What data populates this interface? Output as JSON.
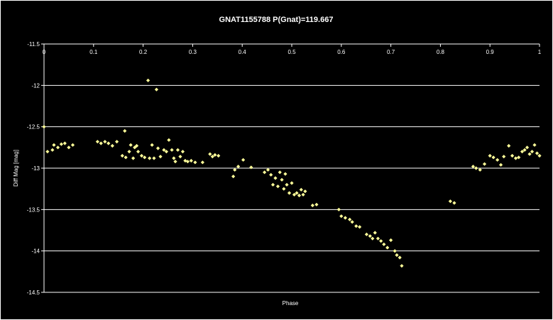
{
  "chart_data": {
    "type": "scatter",
    "title": "GNAT1155788 P(Gnat)=119.667",
    "xlabel": "Phase",
    "ylabel": "Diff Mag [mag]",
    "xlim": [
      0,
      1
    ],
    "ylim": [
      -11.5,
      -14.5
    ],
    "y_inverted": true,
    "x_ticks": [
      "0",
      "0.1",
      "0.2",
      "0.3",
      "0.4",
      "0.5",
      "0.6",
      "0.7",
      "0.8",
      "0.9",
      "1"
    ],
    "y_ticks": [
      "-11.5",
      "-12",
      "-12.5",
      "-13",
      "-13.5",
      "-14",
      "-14.5"
    ],
    "grid": "horizontal",
    "legend": "none",
    "colors": {
      "background": "#000000",
      "plot_area": "#000000",
      "grid": "#ffffff",
      "axis": "#ffffff",
      "text": "#ffffff",
      "point": "#ffff99"
    },
    "series": [
      {
        "marker": "diamond",
        "points": [
          [
            0.0,
            -12.5
          ],
          [
            0.007,
            -12.8
          ],
          [
            0.017,
            -12.78
          ],
          [
            0.02,
            -12.72
          ],
          [
            0.028,
            -12.75
          ],
          [
            0.035,
            -12.71
          ],
          [
            0.042,
            -12.7
          ],
          [
            0.05,
            -12.75
          ],
          [
            0.058,
            -12.72
          ],
          [
            0.108,
            -12.68
          ],
          [
            0.115,
            -12.7
          ],
          [
            0.123,
            -12.68
          ],
          [
            0.13,
            -12.7
          ],
          [
            0.138,
            -12.73
          ],
          [
            0.147,
            -12.68
          ],
          [
            0.158,
            -12.85
          ],
          [
            0.163,
            -12.55
          ],
          [
            0.165,
            -12.87
          ],
          [
            0.172,
            -12.8
          ],
          [
            0.175,
            -12.72
          ],
          [
            0.18,
            -12.88
          ],
          [
            0.183,
            -12.75
          ],
          [
            0.187,
            -12.73
          ],
          [
            0.19,
            -12.8
          ],
          [
            0.197,
            -12.85
          ],
          [
            0.203,
            -12.87
          ],
          [
            0.21,
            -11.94
          ],
          [
            0.213,
            -12.88
          ],
          [
            0.218,
            -12.72
          ],
          [
            0.222,
            -12.88
          ],
          [
            0.227,
            -12.05
          ],
          [
            0.23,
            -12.76
          ],
          [
            0.235,
            -12.86
          ],
          [
            0.242,
            -12.78
          ],
          [
            0.247,
            -12.8
          ],
          [
            0.252,
            -12.66
          ],
          [
            0.258,
            -12.78
          ],
          [
            0.262,
            -12.88
          ],
          [
            0.265,
            -12.92
          ],
          [
            0.27,
            -12.78
          ],
          [
            0.275,
            -12.86
          ],
          [
            0.28,
            -12.8
          ],
          [
            0.285,
            -12.91
          ],
          [
            0.29,
            -12.92
          ],
          [
            0.297,
            -12.91
          ],
          [
            0.305,
            -12.93
          ],
          [
            0.32,
            -12.93
          ],
          [
            0.335,
            -12.83
          ],
          [
            0.34,
            -12.86
          ],
          [
            0.345,
            -12.84
          ],
          [
            0.352,
            -12.85
          ],
          [
            0.382,
            -13.1
          ],
          [
            0.385,
            -13.02
          ],
          [
            0.392,
            -12.98
          ],
          [
            0.402,
            -12.9
          ],
          [
            0.418,
            -12.99
          ],
          [
            0.445,
            -13.05
          ],
          [
            0.452,
            -13.02
          ],
          [
            0.458,
            -13.08
          ],
          [
            0.462,
            -13.2
          ],
          [
            0.467,
            -13.12
          ],
          [
            0.472,
            -13.22
          ],
          [
            0.476,
            -13.05
          ],
          [
            0.48,
            -13.14
          ],
          [
            0.484,
            -13.25
          ],
          [
            0.487,
            -13.07
          ],
          [
            0.49,
            -13.2
          ],
          [
            0.495,
            -13.3
          ],
          [
            0.5,
            -13.18
          ],
          [
            0.505,
            -13.32
          ],
          [
            0.51,
            -13.3
          ],
          [
            0.515,
            -13.33
          ],
          [
            0.519,
            -13.26
          ],
          [
            0.523,
            -13.32
          ],
          [
            0.527,
            -13.28
          ],
          [
            0.542,
            -13.45
          ],
          [
            0.55,
            -13.44
          ],
          [
            0.595,
            -13.5
          ],
          [
            0.6,
            -13.58
          ],
          [
            0.608,
            -13.6
          ],
          [
            0.617,
            -13.62
          ],
          [
            0.622,
            -13.65
          ],
          [
            0.63,
            -13.7
          ],
          [
            0.637,
            -13.71
          ],
          [
            0.651,
            -13.8
          ],
          [
            0.658,
            -13.82
          ],
          [
            0.663,
            -13.85
          ],
          [
            0.668,
            -13.78
          ],
          [
            0.674,
            -13.85
          ],
          [
            0.68,
            -13.88
          ],
          [
            0.686,
            -13.92
          ],
          [
            0.693,
            -13.96
          ],
          [
            0.7,
            -13.87
          ],
          [
            0.708,
            -14.0
          ],
          [
            0.712,
            -14.05
          ],
          [
            0.718,
            -14.08
          ],
          [
            0.722,
            -14.18
          ],
          [
            0.82,
            -13.4
          ],
          [
            0.828,
            -13.42
          ],
          [
            0.866,
            -12.98
          ],
          [
            0.872,
            -13.0
          ],
          [
            0.88,
            -13.02
          ],
          [
            0.889,
            -12.95
          ],
          [
            0.9,
            -12.85
          ],
          [
            0.907,
            -12.87
          ],
          [
            0.915,
            -12.9
          ],
          [
            0.922,
            -12.96
          ],
          [
            0.928,
            -12.86
          ],
          [
            0.938,
            -12.73
          ],
          [
            0.945,
            -12.85
          ],
          [
            0.952,
            -12.88
          ],
          [
            0.958,
            -12.87
          ],
          [
            0.965,
            -12.8
          ],
          [
            0.97,
            -12.78
          ],
          [
            0.975,
            -12.75
          ],
          [
            0.98,
            -12.83
          ],
          [
            0.985,
            -12.8
          ],
          [
            0.99,
            -12.72
          ],
          [
            0.995,
            -12.82
          ],
          [
            1.0,
            -12.85
          ]
        ]
      }
    ]
  }
}
